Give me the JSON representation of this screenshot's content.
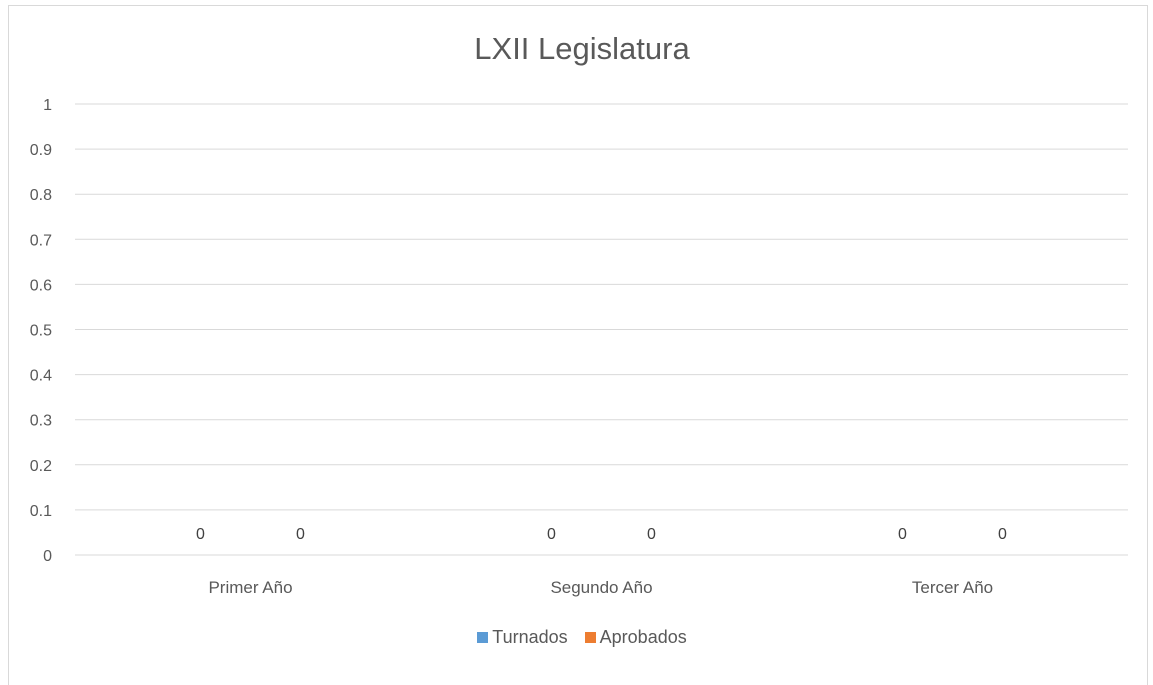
{
  "chart_data": {
    "type": "bar",
    "title": "LXII Legislatura",
    "categories": [
      "Primer Año",
      "Segundo Año",
      "Tercer Año"
    ],
    "series": [
      {
        "name": "Turnados",
        "values": [
          0,
          0,
          0
        ],
        "color": "#5b9bd5"
      },
      {
        "name": "Aprobados",
        "values": [
          0,
          0,
          0
        ],
        "color": "#ed7d31"
      }
    ],
    "yticks": [
      "0",
      "0.1",
      "0.2",
      "0.3",
      "0.4",
      "0.5",
      "0.6",
      "0.7",
      "0.8",
      "0.9",
      "1"
    ],
    "ylim": [
      0,
      1
    ],
    "grid": true,
    "legend_position": "bottom",
    "data_labels": true
  }
}
